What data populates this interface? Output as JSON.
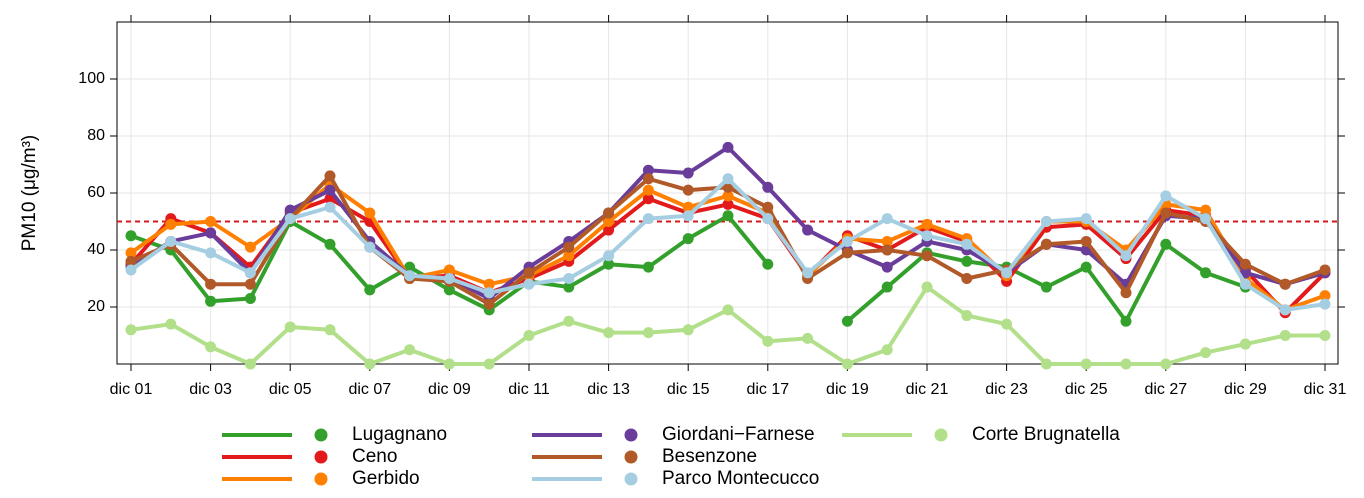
{
  "chart_data": {
    "type": "line",
    "y_label": "PM10 (μg/m³)",
    "categories": [
      "dic 01",
      null,
      "dic 03",
      null,
      "dic 05",
      null,
      "dic 07",
      null,
      "dic 09",
      null,
      "dic 11",
      null,
      "dic 13",
      null,
      "dic 15",
      null,
      "dic 17",
      null,
      "dic 19",
      null,
      "dic 21",
      null,
      "dic 23",
      null,
      "dic 25",
      null,
      "dic 27",
      null,
      "dic 29",
      null,
      "dic 31"
    ],
    "ylim": [
      0,
      120
    ],
    "yticks": [
      20,
      40,
      60,
      80,
      100
    ],
    "grid": true,
    "reference_line": {
      "value": 50,
      "color": "#d7191c"
    },
    "legend": "bottom",
    "series": [
      {
        "name": "Lugagnano",
        "color": "#33a02c",
        "values": [
          45,
          40,
          22,
          23,
          50,
          42,
          26,
          34,
          26,
          19,
          29,
          27,
          35,
          34,
          44,
          52,
          35,
          null,
          15,
          27,
          39,
          36,
          34,
          27,
          34,
          15,
          42,
          32,
          27,
          null,
          null
        ]
      },
      {
        "name": "Ceno",
        "color": "#e31a1c",
        "values": [
          35,
          51,
          46,
          34,
          53,
          58,
          50,
          30,
          31,
          25,
          30,
          36,
          47,
          58,
          53,
          56,
          51,
          31,
          45,
          40,
          48,
          43,
          29,
          48,
          49,
          37,
          54,
          52,
          33,
          18,
          32
        ]
      },
      {
        "name": "Gerbido",
        "color": "#ff7f00",
        "values": [
          39,
          49,
          50,
          41,
          51,
          63,
          53,
          30,
          33,
          28,
          31,
          38,
          50,
          61,
          55,
          59,
          53,
          31,
          44,
          43,
          49,
          44,
          31,
          50,
          50,
          40,
          56,
          54,
          30,
          19,
          24
        ]
      },
      {
        "name": "Giordani−Farnese",
        "color": "#6a3d9a",
        "values": [
          34,
          43,
          46,
          32,
          54,
          61,
          43,
          31,
          30,
          23,
          34,
          43,
          53,
          68,
          67,
          76,
          62,
          47,
          40,
          34,
          43,
          40,
          32,
          42,
          40,
          28,
          52,
          51,
          32,
          28,
          32
        ]
      },
      {
        "name": "Besenzone",
        "color": "#b15928",
        "values": [
          36,
          42,
          28,
          28,
          51,
          66,
          41,
          30,
          29,
          21,
          32,
          41,
          53,
          65,
          61,
          62,
          55,
          30,
          39,
          40,
          38,
          30,
          33,
          42,
          43,
          25,
          53,
          50,
          35,
          28,
          33
        ]
      },
      {
        "name": "Parco Montecucco",
        "color": "#a6cee3",
        "values": [
          33,
          43,
          39,
          32,
          51,
          55,
          41,
          31,
          30,
          25,
          28,
          30,
          38,
          51,
          52,
          65,
          51,
          32,
          43,
          51,
          45,
          42,
          32,
          50,
          51,
          38,
          59,
          51,
          28,
          19,
          21
        ]
      },
      {
        "name": "Corte Brugnatella",
        "color": "#b2df8a",
        "values": [
          12,
          14,
          6,
          0,
          13,
          12,
          0,
          5,
          0,
          0,
          10,
          15,
          11,
          11,
          12,
          19,
          8,
          9,
          0,
          5,
          27,
          17,
          14,
          0,
          0,
          0,
          0,
          4,
          7,
          10,
          10
        ]
      }
    ]
  }
}
